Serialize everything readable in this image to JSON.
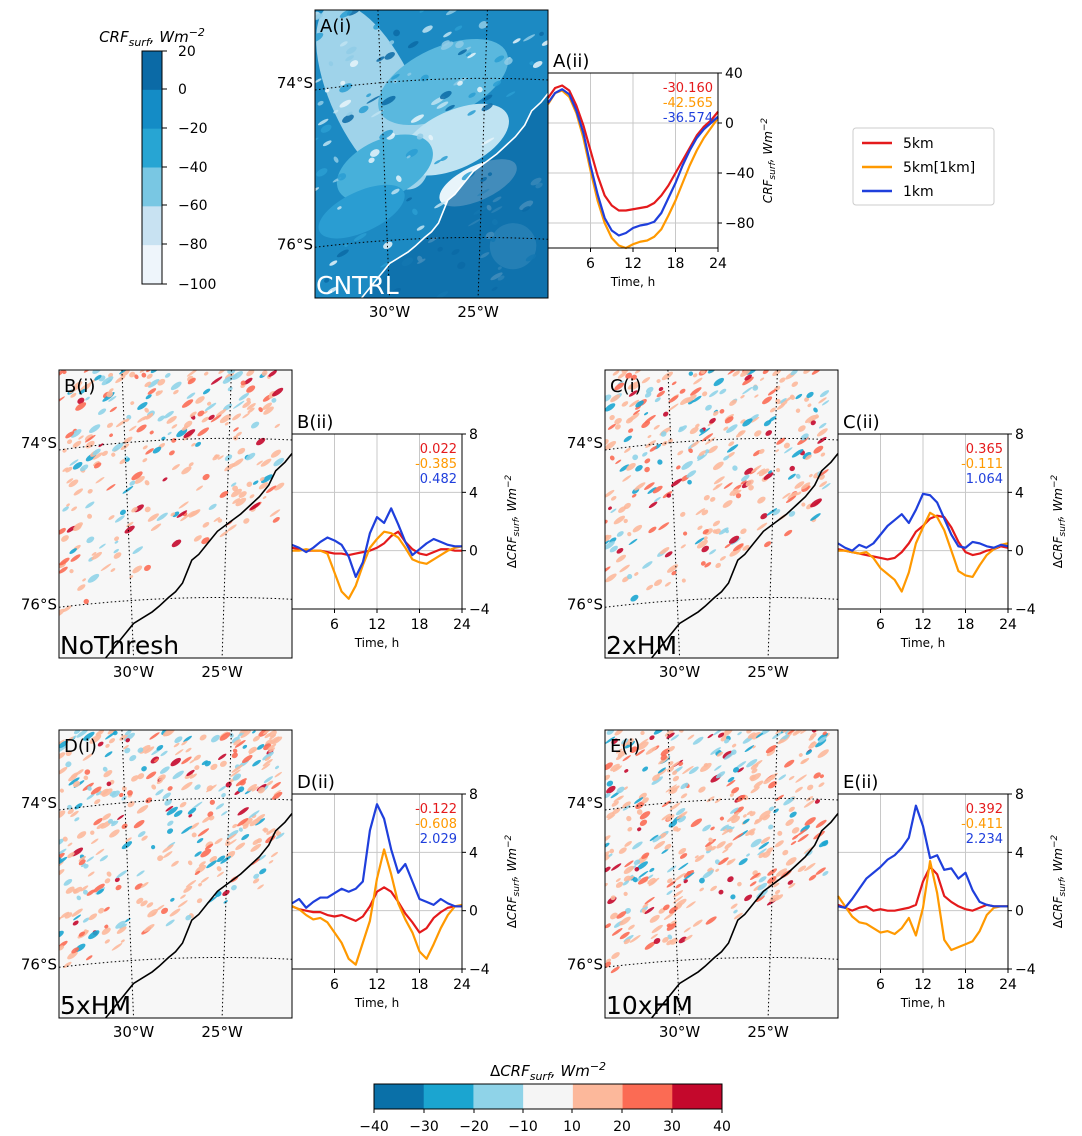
{
  "colorbar_top": {
    "label_main": "CRF",
    "label_sub": "surf",
    "label_unit": ", Wm",
    "label_sup": "−2",
    "ticks": [
      "20",
      "0",
      "−20",
      "−40",
      "−60",
      "−80",
      "−100"
    ],
    "colors": [
      "#0b6aa6",
      "#148cc6",
      "#27a5d3",
      "#79c7e3",
      "#c8e2f2",
      "#eef5fb"
    ]
  },
  "colorbar_bottom": {
    "label_prefix": "Δ",
    "label_main": "CRF",
    "label_sub": "surf",
    "label_unit": ", Wm",
    "label_sup": "−2",
    "ticks": [
      "−40",
      "−30",
      "−20",
      "−10",
      "10",
      "20",
      "30",
      "40"
    ],
    "colors": [
      "#0a70a8",
      "#1ba5d0",
      "#8fd3e8",
      "#f5f5f5",
      "#fcb89b",
      "#fb6b54",
      "#c4082c"
    ]
  },
  "legend": {
    "entries": [
      {
        "name": "5km",
        "color": "#e41a1c"
      },
      {
        "name": "5km[1km]",
        "color": "#ff9900"
      },
      {
        "name": "1km",
        "color": "#1f3fdc"
      }
    ]
  },
  "maps": [
    {
      "panel_label": "A(i)",
      "run_label": "CNTRL",
      "lat_labels": [
        "74°S",
        "76°S"
      ],
      "lon_labels": [
        "30°W",
        "25°W"
      ]
    },
    {
      "panel_label": "B(i)",
      "run_label": "NoThresh",
      "lat_labels": [
        "74°S",
        "76°S"
      ],
      "lon_labels": [
        "30°W",
        "25°W"
      ]
    },
    {
      "panel_label": "C(i)",
      "run_label": "2xHM",
      "lat_labels": [
        "74°S",
        "76°S"
      ],
      "lon_labels": [
        "30°W",
        "25°W"
      ]
    },
    {
      "panel_label": "D(i)",
      "run_label": "5xHM",
      "lat_labels": [
        "74°S",
        "76°S"
      ],
      "lon_labels": [
        "30°W",
        "25°W"
      ]
    },
    {
      "panel_label": "E(i)",
      "run_label": "10xHM",
      "lat_labels": [
        "74°S",
        "76°S"
      ],
      "lon_labels": [
        "30°W",
        "25°W"
      ]
    }
  ],
  "chart_data": [
    {
      "type": "line",
      "panel_label": "A(ii)",
      "xlabel": "Time, h",
      "ylabel_main": "CRF",
      "ylabel_sub": "surf",
      "ylabel_unit": ", Wm",
      "ylabel_sup": "−2",
      "xlim": [
        0,
        24
      ],
      "ylim": [
        -100,
        40
      ],
      "xticks": [
        6,
        12,
        18,
        24
      ],
      "yticks": [
        40,
        0,
        -40,
        -80
      ],
      "grid": true,
      "annotations": [
        {
          "text": "-30.160",
          "color": "#e41a1c"
        },
        {
          "text": "-42.565",
          "color": "#ff9900"
        },
        {
          "text": "-36.574",
          "color": "#1f3fdc"
        }
      ],
      "x": [
        0,
        1,
        2,
        3,
        4,
        5,
        6,
        7,
        8,
        9,
        10,
        11,
        12,
        13,
        14,
        15,
        16,
        17,
        18,
        19,
        20,
        21,
        22,
        23,
        24
      ],
      "series": [
        {
          "name": "5km",
          "color": "#e41a1c",
          "values": [
            20,
            28,
            30,
            26,
            14,
            -2,
            -22,
            -42,
            -58,
            -66,
            -70,
            -70,
            -69,
            -68,
            -67,
            -64,
            -58,
            -50,
            -40,
            -30,
            -20,
            -10,
            -3,
            2,
            9
          ]
        },
        {
          "name": "5km[1km]",
          "color": "#ff9900",
          "values": [
            15,
            24,
            26,
            21,
            8,
            -12,
            -38,
            -62,
            -80,
            -92,
            -98,
            -100,
            -97,
            -95,
            -94,
            -91,
            -85,
            -74,
            -62,
            -48,
            -34,
            -22,
            -12,
            -4,
            4
          ]
        },
        {
          "name": "1km",
          "color": "#1f3fdc",
          "values": [
            16,
            24,
            27,
            23,
            10,
            -8,
            -34,
            -57,
            -76,
            -86,
            -90,
            -88,
            -84,
            -82,
            -81,
            -79,
            -72,
            -60,
            -48,
            -34,
            -22,
            -12,
            -5,
            0,
            5
          ]
        }
      ]
    },
    {
      "type": "line",
      "panel_label": "B(ii)",
      "xlabel": "Time, h",
      "ylabel_prefix": "Δ",
      "ylabel_main": "CRF",
      "ylabel_sub": "surf",
      "ylabel_unit": ", Wm",
      "ylabel_sup": "−2",
      "xlim": [
        0,
        24
      ],
      "ylim": [
        -4,
        8
      ],
      "xticks": [
        6,
        12,
        18,
        24
      ],
      "yticks": [
        8,
        4,
        0,
        -4
      ],
      "grid": true,
      "annotations": [
        {
          "text": "0.022",
          "color": "#e41a1c"
        },
        {
          "text": "-0.385",
          "color": "#ff9900"
        },
        {
          "text": "0.482",
          "color": "#1f3fdc"
        }
      ],
      "x": [
        0,
        1,
        2,
        3,
        4,
        5,
        6,
        7,
        8,
        9,
        10,
        11,
        12,
        13,
        14,
        15,
        16,
        17,
        18,
        19,
        20,
        21,
        22,
        23,
        24
      ],
      "series": [
        {
          "name": "5km",
          "color": "#e41a1c",
          "values": [
            0.2,
            0.1,
            0,
            0,
            0,
            -0.1,
            -0.2,
            -0.2,
            -0.3,
            -0.2,
            -0.1,
            0,
            0.2,
            0.5,
            1,
            1.3,
            0.6,
            0.1,
            -0.2,
            -0.3,
            -0.1,
            0.1,
            0.1,
            0,
            0
          ]
        },
        {
          "name": "5km[1km]",
          "color": "#ff9900",
          "values": [
            0,
            0,
            0.1,
            0,
            0,
            -0.2,
            -1.5,
            -2.8,
            -3.3,
            -2.4,
            -1,
            0.2,
            0.8,
            1.3,
            1.2,
            0.9,
            0.2,
            -0.6,
            -0.8,
            -0.9,
            -0.6,
            -0.3,
            0,
            0.2,
            0.3
          ]
        },
        {
          "name": "1km",
          "color": "#1f3fdc",
          "values": [
            0.4,
            0.2,
            -0.1,
            0.2,
            0.6,
            0.9,
            0.7,
            0.4,
            -0.4,
            -1.8,
            -0.8,
            1.2,
            2.3,
            1.9,
            2.9,
            1.8,
            0.6,
            -0.3,
            0.1,
            0.5,
            0.8,
            0.6,
            0.4,
            0.3,
            0.3
          ]
        }
      ]
    },
    {
      "type": "line",
      "panel_label": "C(ii)",
      "xlabel": "Time, h",
      "ylabel_prefix": "Δ",
      "ylabel_main": "CRF",
      "ylabel_sub": "surf",
      "ylabel_unit": ", Wm",
      "ylabel_sup": "−2",
      "xlim": [
        0,
        24
      ],
      "ylim": [
        -4,
        8
      ],
      "xticks": [
        6,
        12,
        18,
        24
      ],
      "yticks": [
        8,
        4,
        0,
        -4
      ],
      "grid": true,
      "annotations": [
        {
          "text": "0.365",
          "color": "#e41a1c"
        },
        {
          "text": "-0.111",
          "color": "#ff9900"
        },
        {
          "text": "1.064",
          "color": "#1f3fdc"
        }
      ],
      "x": [
        0,
        1,
        2,
        3,
        4,
        5,
        6,
        7,
        8,
        9,
        10,
        11,
        12,
        13,
        14,
        15,
        16,
        17,
        18,
        19,
        20,
        21,
        22,
        23,
        24
      ],
      "series": [
        {
          "name": "5km",
          "color": "#e41a1c",
          "values": [
            0.1,
            0,
            -0.1,
            -0.2,
            -0.3,
            -0.4,
            -0.5,
            -0.6,
            -0.5,
            -0.1,
            0.5,
            1.3,
            1.7,
            2.2,
            2.4,
            2.3,
            1.6,
            0.6,
            -0.1,
            -0.3,
            -0.2,
            0,
            0.1,
            0.3,
            0.2
          ]
        },
        {
          "name": "5km[1km]",
          "color": "#ff9900",
          "values": [
            0,
            0,
            -0.1,
            -0.2,
            -0.1,
            -0.5,
            -1.2,
            -1.6,
            -2.0,
            -2.8,
            -1.5,
            0.5,
            1.6,
            2.6,
            2.3,
            1.4,
            0,
            -1.4,
            -1.7,
            -1.8,
            -1,
            -0.3,
            0.1,
            0.4,
            0.5
          ]
        },
        {
          "name": "1km",
          "color": "#1f3fdc",
          "values": [
            0.5,
            0.2,
            0,
            0.4,
            0.2,
            0.5,
            1.1,
            1.7,
            2.1,
            2.5,
            1.9,
            2.8,
            3.9,
            3.8,
            3.3,
            2.2,
            1.1,
            0.3,
            0.2,
            0.6,
            0.5,
            0.3,
            0.2,
            0.4,
            0.3
          ]
        }
      ]
    },
    {
      "type": "line",
      "panel_label": "D(ii)",
      "xlabel": "Time, h",
      "ylabel_prefix": "Δ",
      "ylabel_main": "CRF",
      "ylabel_sub": "surf",
      "ylabel_unit": ", Wm",
      "ylabel_sup": "−2",
      "xlim": [
        0,
        24
      ],
      "ylim": [
        -4,
        8
      ],
      "xticks": [
        6,
        12,
        18,
        24
      ],
      "yticks": [
        8,
        4,
        0,
        -4
      ],
      "grid": true,
      "annotations": [
        {
          "text": "-0.122",
          "color": "#e41a1c"
        },
        {
          "text": "-0.608",
          "color": "#ff9900"
        },
        {
          "text": "2.029",
          "color": "#1f3fdc"
        }
      ],
      "x": [
        0,
        1,
        2,
        3,
        4,
        5,
        6,
        7,
        8,
        9,
        10,
        11,
        12,
        13,
        14,
        15,
        16,
        17,
        18,
        19,
        20,
        21,
        22,
        23,
        24
      ],
      "series": [
        {
          "name": "5km",
          "color": "#e41a1c",
          "values": [
            0.3,
            0.1,
            0,
            -0.1,
            -0.1,
            -0.3,
            -0.4,
            -0.3,
            -0.5,
            -0.7,
            -0.4,
            0.3,
            1.3,
            1.6,
            1.3,
            0.6,
            -0.2,
            -0.8,
            -1.5,
            -1.2,
            -0.5,
            -0.1,
            0.2,
            0.3,
            0.3
          ]
        },
        {
          "name": "5km[1km]",
          "color": "#ff9900",
          "values": [
            0.3,
            0.1,
            -0.3,
            -0.6,
            -0.5,
            -0.8,
            -1.5,
            -2.2,
            -3.3,
            -3.7,
            -2.2,
            -0.7,
            2.2,
            4.2,
            2.5,
            0.5,
            -0.6,
            -1.5,
            -2.8,
            -3.3,
            -2.3,
            -1.2,
            -0.3,
            0.3,
            0.4
          ]
        },
        {
          "name": "1km",
          "color": "#1f3fdc",
          "values": [
            0.5,
            0.8,
            0.2,
            0.6,
            0.9,
            0.9,
            1.2,
            1.5,
            1.3,
            1.5,
            2.0,
            5.5,
            7.3,
            6.3,
            4.2,
            2.6,
            3.2,
            2.0,
            0.8,
            0.6,
            0.4,
            0.8,
            0.5,
            0.3,
            0.3
          ]
        }
      ]
    },
    {
      "type": "line",
      "panel_label": "E(ii)",
      "xlabel": "Time, h",
      "ylabel_prefix": "Δ",
      "ylabel_main": "CRF",
      "ylabel_sub": "surf",
      "ylabel_unit": ", Wm",
      "ylabel_sup": "−2",
      "xlim": [
        0,
        24
      ],
      "ylim": [
        -4,
        8
      ],
      "xticks": [
        6,
        12,
        18,
        24
      ],
      "yticks": [
        8,
        4,
        0,
        -4
      ],
      "grid": true,
      "annotations": [
        {
          "text": "0.392",
          "color": "#e41a1c"
        },
        {
          "text": "-0.411",
          "color": "#ff9900"
        },
        {
          "text": "2.234",
          "color": "#1f3fdc"
        }
      ],
      "x": [
        0,
        1,
        2,
        3,
        4,
        5,
        6,
        7,
        8,
        9,
        10,
        11,
        12,
        13,
        14,
        15,
        16,
        17,
        18,
        19,
        20,
        21,
        22,
        23,
        24
      ],
      "series": [
        {
          "name": "5km",
          "color": "#e41a1c",
          "values": [
            0.4,
            0.2,
            0,
            0.2,
            0.3,
            0,
            0.1,
            0,
            0,
            0.1,
            0.2,
            0.4,
            2.0,
            3.0,
            2.5,
            1.0,
            0.6,
            0.3,
            0.1,
            0,
            0.2,
            0.4,
            0.3,
            0.3,
            0.3
          ]
        },
        {
          "name": "5km[1km]",
          "color": "#ff9900",
          "values": [
            1.0,
            0.3,
            -0.4,
            -0.8,
            -0.9,
            -1.2,
            -1.5,
            -1.4,
            -1.6,
            -1.2,
            -0.5,
            -1.7,
            0.2,
            3.4,
            1.2,
            -2.0,
            -2.7,
            -2.5,
            -2.3,
            -2.1,
            -1.4,
            -0.3,
            0.2,
            0.3,
            0.3
          ]
        },
        {
          "name": "1km",
          "color": "#1f3fdc",
          "values": [
            0.3,
            0.2,
            0.8,
            1.5,
            2.2,
            2.6,
            3.0,
            3.5,
            3.8,
            4.3,
            5.0,
            7.2,
            5.8,
            3.6,
            3.8,
            2.8,
            2.9,
            2.2,
            2.6,
            1.4,
            0.6,
            0.4,
            0.3,
            0.3,
            0.3
          ]
        }
      ]
    }
  ]
}
